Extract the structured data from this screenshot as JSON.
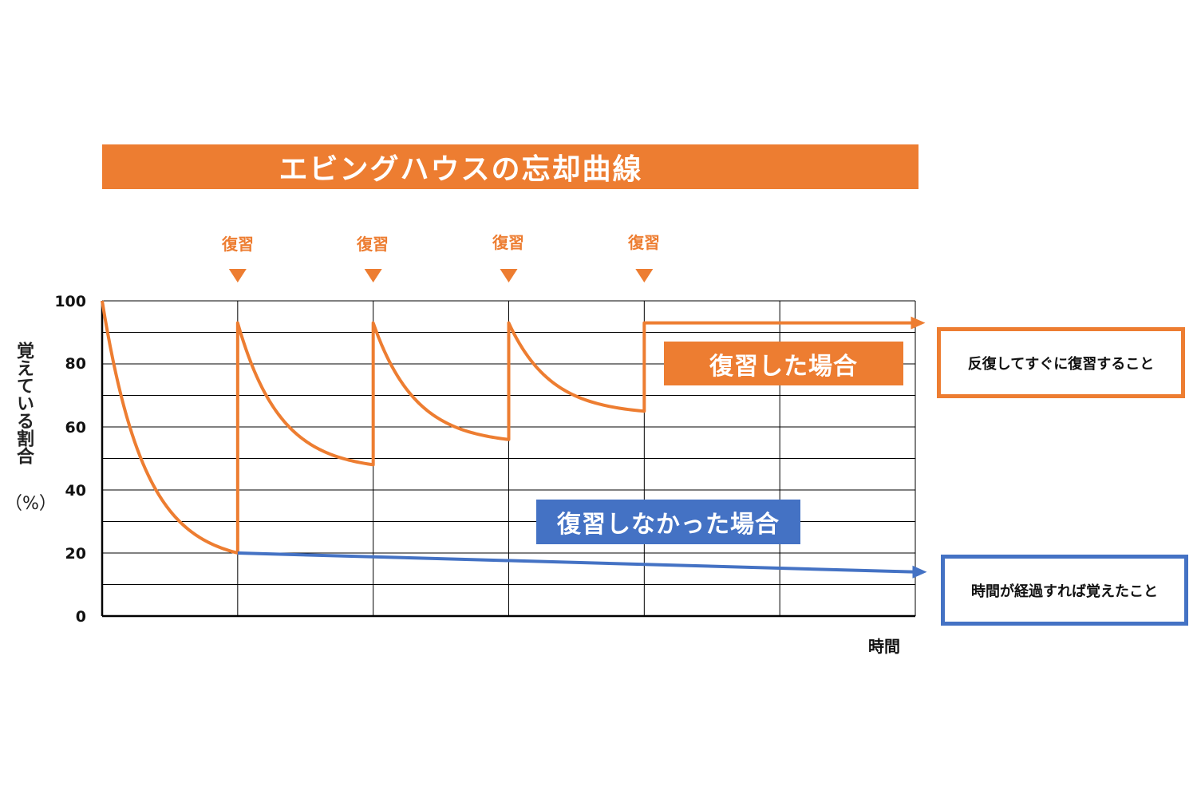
{
  "chart_data": {
    "type": "line",
    "title": "エビングハウスの忘却曲線",
    "ylabel": "覚えている割合",
    "yunit": "（%）",
    "xlabel": "時間",
    "ylim": [
      0,
      100
    ],
    "yticks": [
      "100",
      "80",
      "60",
      "40",
      "20",
      "0"
    ],
    "x_divisions": 6,
    "y_divisions": 10,
    "review_label": "復習",
    "review_points": [
      1,
      2,
      3,
      4
    ],
    "series": [
      {
        "name": "復習した場合",
        "color": "#ed7d31",
        "segments": [
          {
            "x0": 0,
            "x1": 1,
            "y0": 100,
            "y1": 20
          },
          {
            "x0": 1,
            "x1": 2,
            "y0": 93,
            "y1": 48
          },
          {
            "x0": 2,
            "x1": 3,
            "y0": 93,
            "y1": 56
          },
          {
            "x0": 3,
            "x1": 4,
            "y0": 93,
            "y1": 65
          }
        ],
        "flat": {
          "x0": 4,
          "x1": 6.05,
          "y": 93
        },
        "note": "反復してすぐに復習すること"
      },
      {
        "name": "復習しなかった場合",
        "color": "#4472c4",
        "line": {
          "x0": 1,
          "x1": 6.05,
          "y0": 20,
          "y1": 14
        },
        "note": "時間が経過すれば覚えたこと"
      }
    ]
  },
  "colors": {
    "orange": "#ed7d31",
    "blue": "#4472c4",
    "grid": "#000000"
  }
}
